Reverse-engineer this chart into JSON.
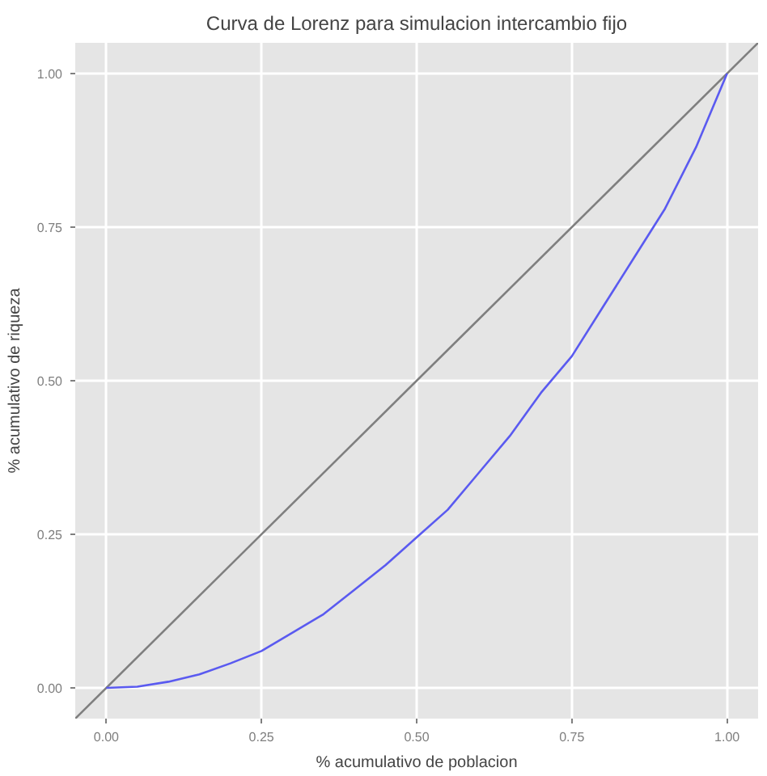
{
  "chart_data": {
    "type": "line",
    "title": "Curva de Lorenz para simulacion intercambio fijo",
    "xlabel": "% acumulativo de poblacion",
    "ylabel": "% acumulativo de riqueza",
    "series": [
      {
        "color": "#7f7f7f",
        "x": [
          -0.05,
          1.05
        ],
        "values": [
          -0.05,
          1.05
        ]
      },
      {
        "color": "#5a5af0",
        "x": [
          0,
          0.05,
          0.1,
          0.15,
          0.2,
          0.25,
          0.3,
          0.35,
          0.4,
          0.45,
          0.5,
          0.55,
          0.6,
          0.65,
          0.7,
          0.75,
          0.8,
          0.85,
          0.9,
          0.95,
          1
        ],
        "values": [
          0,
          0.002,
          0.01,
          0.022,
          0.04,
          0.06,
          0.09,
          0.12,
          0.16,
          0.2,
          0.245,
          0.29,
          0.35,
          0.41,
          0.48,
          0.54,
          0.62,
          0.7,
          0.78,
          0.88,
          1
        ]
      }
    ],
    "xlim": [
      -0.05,
      1.05
    ],
    "ylim": [
      -0.05,
      1.05
    ],
    "xticks": [
      {
        "value": 0,
        "label": "0.00"
      },
      {
        "value": 0.25,
        "label": "0.25"
      },
      {
        "value": 0.5,
        "label": "0.50"
      },
      {
        "value": 0.75,
        "label": "0.75"
      },
      {
        "value": 1,
        "label": "1.00"
      }
    ],
    "yticks": [
      {
        "value": 0,
        "label": "0.00"
      },
      {
        "value": 0.25,
        "label": "0.25"
      },
      {
        "value": 0.5,
        "label": "0.50"
      },
      {
        "value": 0.75,
        "label": "0.75"
      },
      {
        "value": 1,
        "label": "1.00"
      }
    ],
    "grid": true
  }
}
